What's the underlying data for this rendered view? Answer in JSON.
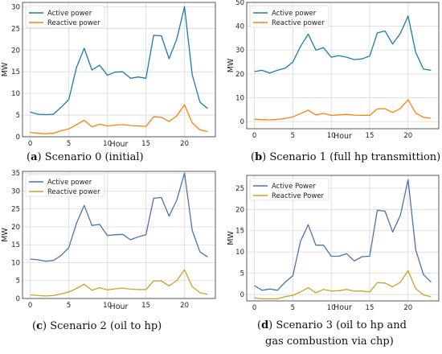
{
  "chart_data": [
    {
      "type": "line",
      "caption_label": "a",
      "caption_text": "Scenario 0 (initial)",
      "xlabel": "Hour",
      "ylabel": "MW",
      "xlim": [
        -1,
        24
      ],
      "ylim": [
        0,
        31
      ],
      "xticks": [
        0,
        5,
        10,
        15,
        20
      ],
      "yticks": [
        0,
        5,
        10,
        15,
        20,
        25,
        30
      ],
      "grid": true,
      "legend_position": "top-left",
      "x": [
        0,
        1,
        2,
        3,
        4,
        5,
        6,
        7,
        8,
        9,
        10,
        11,
        12,
        13,
        14,
        15,
        16,
        17,
        18,
        19,
        20,
        21,
        22,
        23
      ],
      "series": [
        {
          "name": "Active power",
          "color": "#1f77b4",
          "values": [
            5.7,
            5.2,
            5.1,
            5.2,
            6.8,
            8.6,
            16.0,
            20.4,
            15.4,
            16.5,
            14.2,
            14.9,
            15.0,
            13.5,
            13.8,
            13.5,
            23.4,
            23.3,
            18.0,
            22.6,
            30.0,
            14.3,
            8.0,
            6.5
          ]
        },
        {
          "name": "Reactive power",
          "color": "#ff7f0e",
          "values": [
            1.0,
            0.8,
            0.7,
            0.8,
            1.4,
            1.8,
            2.8,
            3.8,
            2.3,
            2.9,
            2.5,
            2.7,
            2.8,
            2.6,
            2.5,
            2.4,
            4.6,
            4.5,
            3.5,
            4.8,
            7.4,
            3.2,
            1.6,
            1.2
          ]
        }
      ]
    },
    {
      "type": "line",
      "caption_label": "b",
      "caption_text": "Scenario 1 (full hp transmittion)",
      "xlabel": "Hour",
      "ylabel": "MW",
      "xlim": [
        -1,
        24
      ],
      "ylim": [
        -3,
        50
      ],
      "xticks": [
        0,
        5,
        10,
        15,
        20
      ],
      "yticks": [
        0,
        10,
        20,
        30,
        40,
        50
      ],
      "grid": true,
      "legend_position": "top-left",
      "x": [
        0,
        1,
        2,
        3,
        4,
        5,
        6,
        7,
        8,
        9,
        10,
        11,
        12,
        13,
        14,
        15,
        16,
        17,
        18,
        19,
        20,
        21,
        22,
        23
      ],
      "series": [
        {
          "name": "Active power",
          "color": "#1f77b4",
          "values": [
            21.0,
            21.5,
            20.4,
            21.5,
            22.4,
            25.0,
            31.5,
            36.7,
            30.0,
            31.0,
            27.0,
            27.7,
            27.0,
            26.0,
            26.3,
            27.5,
            37.2,
            38.0,
            32.5,
            37.0,
            44.3,
            29.0,
            22.0,
            21.5
          ]
        },
        {
          "name": "Reactive power",
          "color": "#ff7f0e",
          "values": [
            1.0,
            0.8,
            0.7,
            0.9,
            1.3,
            2.0,
            3.3,
            4.8,
            2.8,
            3.4,
            2.6,
            2.8,
            3.0,
            2.7,
            2.6,
            2.6,
            5.3,
            5.4,
            3.8,
            5.5,
            9.2,
            3.6,
            1.8,
            1.4
          ]
        }
      ]
    },
    {
      "type": "line",
      "caption_label": "c",
      "caption_text": "Scenario 2 (oil to hp)",
      "xlabel": "Hour",
      "ylabel": "MW",
      "xlim": [
        -1,
        24
      ],
      "ylim": [
        0,
        35.5
      ],
      "xticks": [
        0,
        5,
        10,
        15,
        20
      ],
      "yticks": [
        0,
        5,
        10,
        15,
        20,
        25,
        30,
        35
      ],
      "grid": true,
      "legend_position": "top-left",
      "x": [
        0,
        1,
        2,
        3,
        4,
        5,
        6,
        7,
        8,
        9,
        10,
        11,
        12,
        13,
        14,
        15,
        16,
        17,
        18,
        19,
        20,
        21,
        22,
        23
      ],
      "series": [
        {
          "name": "Active power",
          "color": "#4c72b0",
          "values": [
            11.0,
            10.8,
            10.4,
            10.6,
            12.0,
            14.2,
            21.0,
            26.0,
            20.4,
            20.7,
            17.6,
            17.8,
            17.9,
            16.4,
            17.2,
            17.8,
            28.0,
            28.2,
            23.0,
            27.5,
            35.0,
            19.0,
            13.0,
            11.6
          ]
        },
        {
          "name": "Reactive power",
          "color": "#c9a227",
          "values": [
            1.0,
            0.8,
            0.7,
            0.8,
            1.3,
            1.8,
            2.8,
            4.0,
            2.3,
            3.0,
            2.4,
            2.7,
            2.9,
            2.6,
            2.5,
            2.5,
            4.9,
            4.9,
            3.5,
            5.0,
            8.0,
            3.3,
            1.6,
            1.2
          ]
        }
      ]
    },
    {
      "type": "line",
      "caption_label": "d",
      "caption_text": "Scenario 3 (oil to hp and",
      "caption_text_line2": "gas combustion via chp)",
      "xlabel": "Hour",
      "ylabel": "MW",
      "xlim": [
        -1,
        24
      ],
      "ylim": [
        -1.5,
        28
      ],
      "xticks": [
        0,
        5,
        10,
        15,
        20
      ],
      "yticks": [
        0,
        5,
        10,
        15,
        20,
        25
      ],
      "grid": true,
      "legend_position": "top-left",
      "x": [
        0,
        1,
        2,
        3,
        4,
        5,
        6,
        7,
        8,
        9,
        10,
        11,
        12,
        13,
        14,
        15,
        16,
        17,
        18,
        19,
        20,
        21,
        22,
        23
      ],
      "series": [
        {
          "name": "Active Power",
          "color": "#4c72b0",
          "values": [
            2.1,
            1.0,
            1.3,
            1.0,
            2.9,
            4.4,
            12.5,
            16.4,
            11.6,
            11.6,
            9.0,
            9.0,
            9.6,
            7.9,
            8.9,
            9.0,
            19.8,
            19.6,
            14.7,
            18.6,
            27.0,
            10.5,
            4.7,
            2.9
          ]
        },
        {
          "name": "Reactive Power",
          "color": "#c9a227",
          "values": [
            -0.8,
            -1.0,
            -1.0,
            -1.0,
            -0.5,
            -0.2,
            0.6,
            1.6,
            0.4,
            1.2,
            0.8,
            0.9,
            1.2,
            0.8,
            0.8,
            0.6,
            2.8,
            2.7,
            1.8,
            2.9,
            5.6,
            1.4,
            -0.1,
            -0.5
          ]
        }
      ]
    }
  ]
}
